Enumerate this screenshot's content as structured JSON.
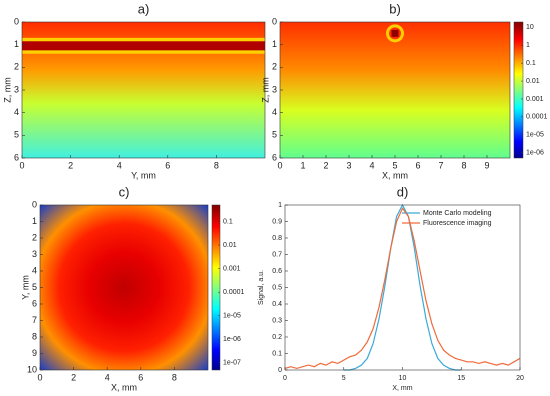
{
  "chart_data": [
    {
      "type": "heatmap",
      "title": "a)",
      "xlabel": "Y, mm",
      "ylabel": "Z, mm",
      "xlim": [
        0,
        10
      ],
      "xticks": [
        0,
        2,
        4,
        6,
        8
      ],
      "ylim": [
        0,
        6
      ],
      "yticks": [
        0,
        1,
        2,
        3,
        4,
        5,
        6
      ],
      "y_reversed": true
    },
    {
      "type": "heatmap",
      "title": "b)",
      "xlabel": "X, mm",
      "ylabel": "Z, mm",
      "xlim": [
        0,
        10
      ],
      "xticks": [
        0,
        1,
        2,
        3,
        4,
        5,
        6,
        7,
        8,
        9
      ],
      "ylim": [
        0,
        6
      ],
      "yticks": [
        0,
        1,
        2,
        3,
        4,
        5,
        6
      ],
      "y_reversed": true,
      "colorbar": {
        "log": true,
        "lim": [
          5e-07,
          20
        ],
        "ticks": [
          10,
          1,
          0.1,
          0.01,
          0.001,
          0.0001,
          {
            "value": 1e-05,
            "label": "1e-05"
          },
          {
            "value": 1e-06,
            "label": "1e-06"
          }
        ]
      }
    },
    {
      "type": "heatmap",
      "title": "c)",
      "xlabel": "X, mm",
      "ylabel": "Y, mm",
      "xlim": [
        0,
        10
      ],
      "xticks": [
        0,
        2,
        4,
        6,
        8
      ],
      "ylim": [
        0,
        10
      ],
      "yticks": [
        0,
        1,
        2,
        3,
        4,
        5,
        6,
        7,
        8,
        9,
        10
      ],
      "y_reversed": true,
      "colorbar": {
        "log": true,
        "lim": [
          5e-08,
          0.5
        ],
        "ticks": [
          0.1,
          0.01,
          0.001,
          0.0001,
          {
            "value": 1e-05,
            "label": "1e-05"
          },
          {
            "value": 1e-06,
            "label": "1e-06"
          },
          {
            "value": 1e-07,
            "label": "1e-07"
          }
        ]
      }
    },
    {
      "type": "line",
      "title": "d)",
      "xlabel": "X, mm",
      "ylabel": "Signal, a.u.",
      "xlim": [
        0,
        20
      ],
      "xticks": [
        0,
        5,
        10,
        15,
        20
      ],
      "ylim": [
        0,
        1
      ],
      "yticks": [
        0,
        0.1,
        0.2,
        0.3,
        0.4,
        0.5,
        0.6,
        0.7,
        0.8,
        0.9,
        1
      ],
      "x": [
        0,
        0.5,
        1,
        1.5,
        2,
        2.5,
        3,
        3.5,
        4,
        4.5,
        5,
        5.5,
        6,
        6.5,
        7,
        7.5,
        8,
        8.5,
        9,
        9.5,
        10,
        10.5,
        11,
        11.5,
        12,
        12.5,
        13,
        13.5,
        14,
        14.5,
        15,
        15.5,
        16,
        16.5,
        17,
        17.5,
        18,
        18.5,
        19,
        19.5,
        20
      ],
      "legend": "upper right",
      "series": [
        {
          "name": "Monte Carlo modeling",
          "color": "#3aa9d8",
          "values": [
            null,
            null,
            null,
            null,
            null,
            null,
            null,
            null,
            null,
            null,
            0,
            0,
            0.01,
            0.03,
            0.07,
            0.16,
            0.31,
            0.51,
            0.74,
            0.93,
            1,
            0.93,
            0.74,
            0.51,
            0.31,
            0.16,
            0.07,
            0.03,
            0.01,
            0,
            0,
            null,
            null,
            null,
            null,
            null,
            null,
            null,
            null,
            null,
            null
          ]
        },
        {
          "name": "Fluorescence imaging",
          "color": "#f06a3a",
          "values": [
            0.01,
            0.02,
            0.01,
            0.02,
            0.03,
            0.02,
            0.04,
            0.03,
            0.05,
            0.04,
            0.06,
            0.08,
            0.09,
            0.12,
            0.17,
            0.25,
            0.38,
            0.55,
            0.74,
            0.9,
            0.98,
            0.93,
            0.78,
            0.6,
            0.42,
            0.28,
            0.18,
            0.12,
            0.09,
            0.07,
            0.06,
            0.05,
            0.05,
            0.04,
            0.05,
            0.04,
            0.03,
            0.04,
            0.03,
            0.05,
            0.07
          ]
        }
      ]
    }
  ]
}
